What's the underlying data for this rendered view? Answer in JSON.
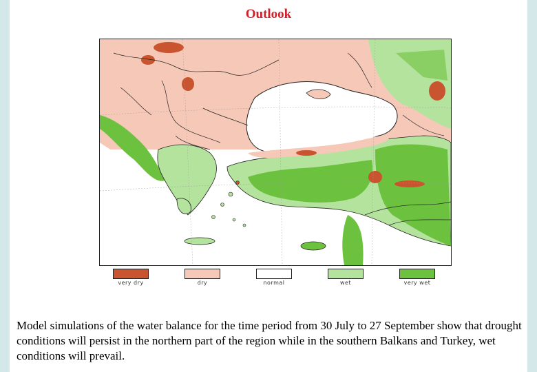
{
  "title": "Outlook",
  "legend": [
    {
      "label": "very dry",
      "color": "#c8552f"
    },
    {
      "label": "dry",
      "color": "#f6c8b8"
    },
    {
      "label": "normal",
      "color": "#ffffff"
    },
    {
      "label": "wet",
      "color": "#b4e39e"
    },
    {
      "label": "very wet",
      "color": "#6cc23e"
    }
  ],
  "caption": "Model simulations of the water balance for the time period from 30 July to 27 September show that drought conditions will persist in the northern part of the region while in the southern Balkans and Turkey, wet conditions will prevail.",
  "colors": {
    "very_dry": "#c8552f",
    "dry": "#f6c8b8",
    "normal": "#ffffff",
    "wet": "#b4e39e",
    "very_wet": "#6cc23e",
    "title": "#d0202a"
  }
}
